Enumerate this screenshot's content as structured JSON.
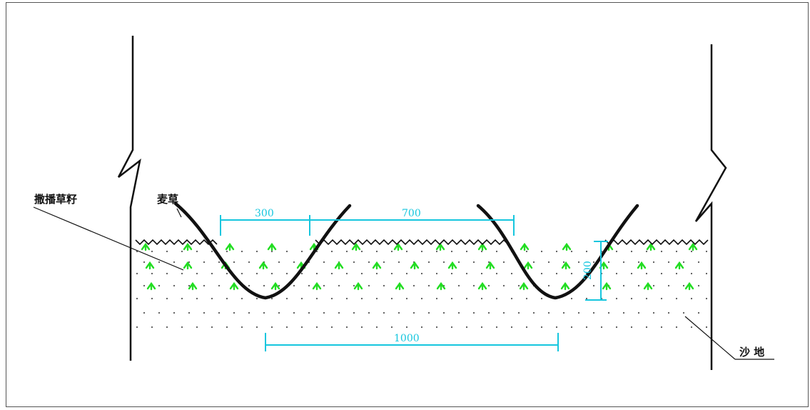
{
  "labels": {
    "seed_broadcast": "撒播草籽",
    "straw": "麦草",
    "sand": "沙 地"
  },
  "dimensions": {
    "d300": "300",
    "d700": "700",
    "d1000": "1000",
    "d200": "200"
  },
  "colors": {
    "line": "#111111",
    "dimension": "#16c6de",
    "seed": "#22dd22",
    "dot": "#555555"
  }
}
